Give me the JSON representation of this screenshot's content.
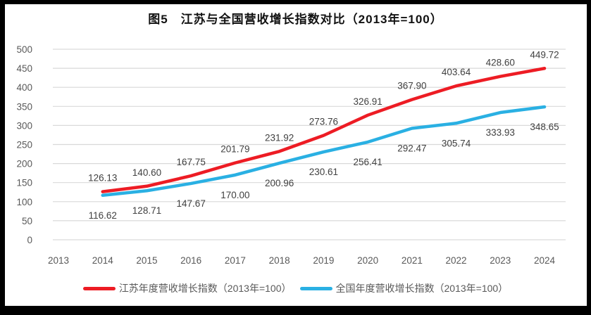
{
  "chart_data": {
    "type": "line",
    "title": "图5　江苏与全国营收增长指数对比（2013年=100）",
    "x": [
      "2013",
      "2014",
      "2015",
      "2016",
      "2017",
      "2018",
      "2019",
      "2020",
      "2021",
      "2022",
      "2023",
      "2024"
    ],
    "series": [
      {
        "name": "江苏年度营收增长指数（2013年=100）",
        "color": "#ed1c24",
        "label_position": "above",
        "values": [
          null,
          126.13,
          140.6,
          167.75,
          201.79,
          231.92,
          273.76,
          326.91,
          367.9,
          403.64,
          428.6,
          449.72
        ]
      },
      {
        "name": "全国年度营收增长指数（2013年=100）",
        "color": "#2ab0e3",
        "label_position": "below",
        "values": [
          null,
          116.62,
          128.71,
          147.67,
          170.0,
          200.96,
          230.61,
          256.41,
          292.47,
          305.74,
          333.93,
          348.65
        ]
      }
    ],
    "ylim": [
      0,
      500
    ],
    "ytick_step": 50,
    "yticks": [
      0,
      50,
      100,
      150,
      200,
      250,
      300,
      350,
      400,
      450,
      500
    ],
    "grid": true,
    "legend_position": "bottom",
    "data_label_decimals": 2
  },
  "colors": {
    "gridline": "#d9d9d9",
    "axis_tick_label": "#595959",
    "data_label": "#404040",
    "frame": "#000000"
  }
}
